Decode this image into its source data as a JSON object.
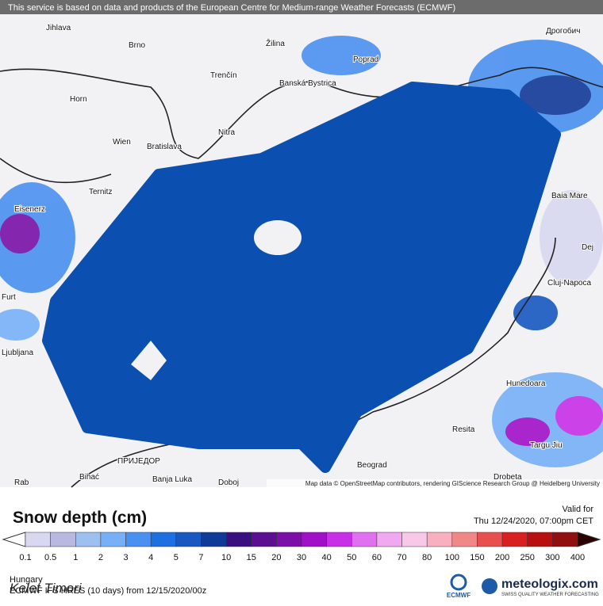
{
  "banner": "This service is based on data and products of the European Centre for Medium-range Weather Forecasts (ECMWF)",
  "cities": [
    "Jihlava",
    "Brno",
    "Žilina",
    "Poprad",
    "Дрогобич",
    "Trenčín",
    "Banská Bystrica",
    "Horn",
    "Nitra",
    "Wien",
    "Bratislava",
    "Ternitz",
    "Eisenerz",
    "Baia Mare",
    "Dej",
    "Cluj-Napoca",
    "Hunedoara",
    "Resita",
    "Targu Jiu",
    "Drobeta",
    "Beograd",
    "Banja Luka",
    "Doboj",
    "Bihać",
    "ПРИЈЕДОР",
    "Rab",
    "Ljubljana",
    "Furt"
  ],
  "attribution": "Map data © OpenStreetMap contributors, rendering GIScience Research Group @ Heidelberg University",
  "legend": {
    "title": "Snow depth (cm)",
    "valid_label": "Valid for",
    "valid_time": "Thu 12/24/2020, 07:00pm CET",
    "labels": [
      "0.1",
      "0.5",
      "1",
      "2",
      "3",
      "4",
      "5",
      "7",
      "10",
      "15",
      "20",
      "30",
      "40",
      "50",
      "60",
      "70",
      "80",
      "100",
      "150",
      "200",
      "250",
      "300",
      "400"
    ],
    "colors": [
      "#d8d8f0",
      "#b8b8e0",
      "#9cc0f0",
      "#78b0f8",
      "#4a90f0",
      "#1e70e0",
      "#1858c0",
      "#103a98",
      "#3a1080",
      "#5a1090",
      "#7a10a8",
      "#a010c8",
      "#c830e8",
      "#e070f0",
      "#f0a8f0",
      "#f8c8e8",
      "#f8b0c0",
      "#f08888",
      "#e85050",
      "#d82020",
      "#b81010",
      "#901010"
    ]
  },
  "region": "Hungary",
  "model": "ECMWF IFS HRES (10 days) from 12/15/2020/00z",
  "handwriting": "Kelet Timori",
  "logo_ecmwf": "ECMWF",
  "logo_brand": "meteologix.com",
  "logo_tagline": "SWISS QUALITY WEATHER FORECASTING"
}
